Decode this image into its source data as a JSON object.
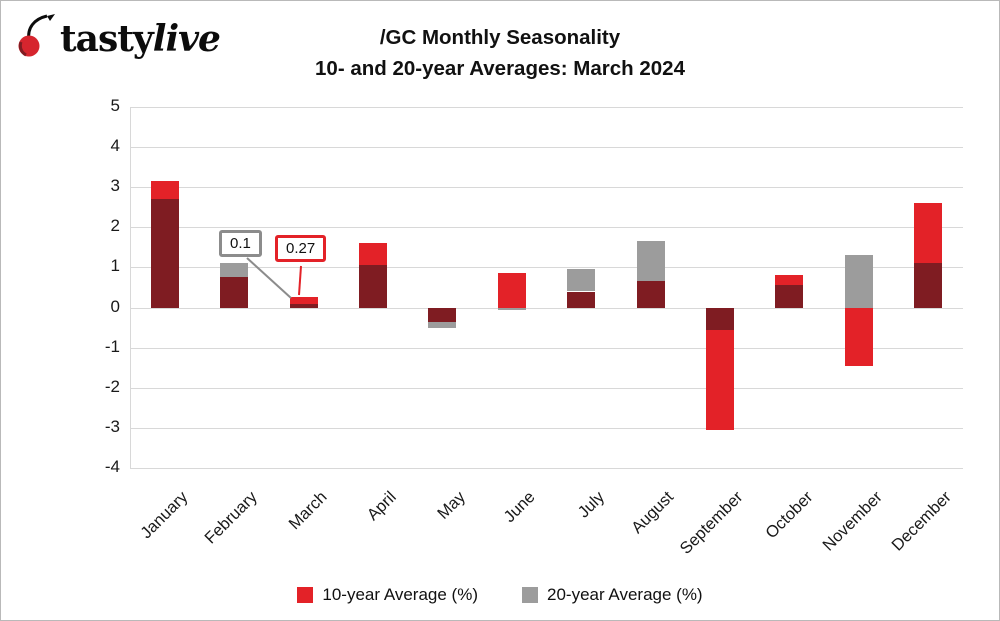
{
  "logo": {
    "brand_tasty": "tasty",
    "brand_live": "live"
  },
  "title": {
    "line1": "/GC Monthly Seasonality",
    "line2": "10- and 20-year Averages: March 2024"
  },
  "chart_data": {
    "type": "bar",
    "categories": [
      "January",
      "February",
      "March",
      "April",
      "May",
      "June",
      "July",
      "August",
      "September",
      "October",
      "November",
      "December"
    ],
    "series": [
      {
        "name": "10-year Average (%)",
        "color": "#e32228",
        "values": [
          3.15,
          0.75,
          0.27,
          1.6,
          -0.35,
          0.85,
          0.4,
          0.65,
          -3.05,
          0.8,
          -1.45,
          2.6
        ]
      },
      {
        "name": "20-year Average (%)",
        "color": "#9c9c9c",
        "values": [
          2.7,
          1.1,
          0.1,
          1.05,
          -0.5,
          -0.07,
          0.95,
          1.65,
          -0.55,
          0.55,
          1.3,
          1.1
        ]
      }
    ],
    "overlap_color": "#7f1c22",
    "ylim": [
      -4,
      5
    ],
    "yticks": [
      5,
      4,
      3,
      2,
      1,
      0,
      -1,
      -2,
      -3,
      -4
    ],
    "grid": true,
    "legend_position": "bottom",
    "annotations": [
      {
        "label": "0.1",
        "month": "March",
        "series": "20-year Average (%)",
        "box_color": "#8c8c8c"
      },
      {
        "label": "0.27",
        "month": "March",
        "series": "10-year Average (%)",
        "box_color": "#e32228"
      }
    ]
  },
  "legend": {
    "items": [
      {
        "label": "10-year Average (%)",
        "color": "#e32228"
      },
      {
        "label": "20-year Average (%)",
        "color": "#9c9c9c"
      }
    ]
  }
}
